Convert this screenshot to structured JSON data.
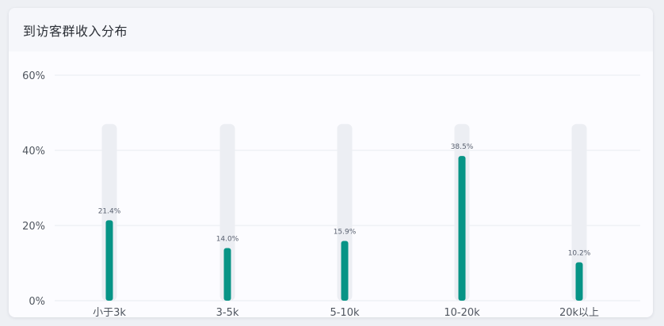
{
  "card": {
    "title": "到访客群收入分布"
  },
  "colors": {
    "bar": "#079486",
    "track": "#eceef3",
    "grid": "#e9ebf0"
  },
  "chart_data": {
    "type": "bar",
    "categories": [
      "小于3k",
      "3-5k",
      "5-10k",
      "10-20k",
      "20k以上"
    ],
    "values": [
      21.4,
      14.0,
      15.9,
      38.5,
      10.2
    ],
    "value_labels": [
      "21.4%",
      "14.0%",
      "15.9%",
      "38.5%",
      "10.2%"
    ],
    "track_value": 47,
    "ylim": [
      0,
      60
    ],
    "yticks": [
      0,
      20,
      40,
      60
    ],
    "ytick_labels": [
      "0%",
      "20%",
      "40%",
      "60%"
    ],
    "grid": true,
    "xlabel": "",
    "ylabel": ""
  }
}
